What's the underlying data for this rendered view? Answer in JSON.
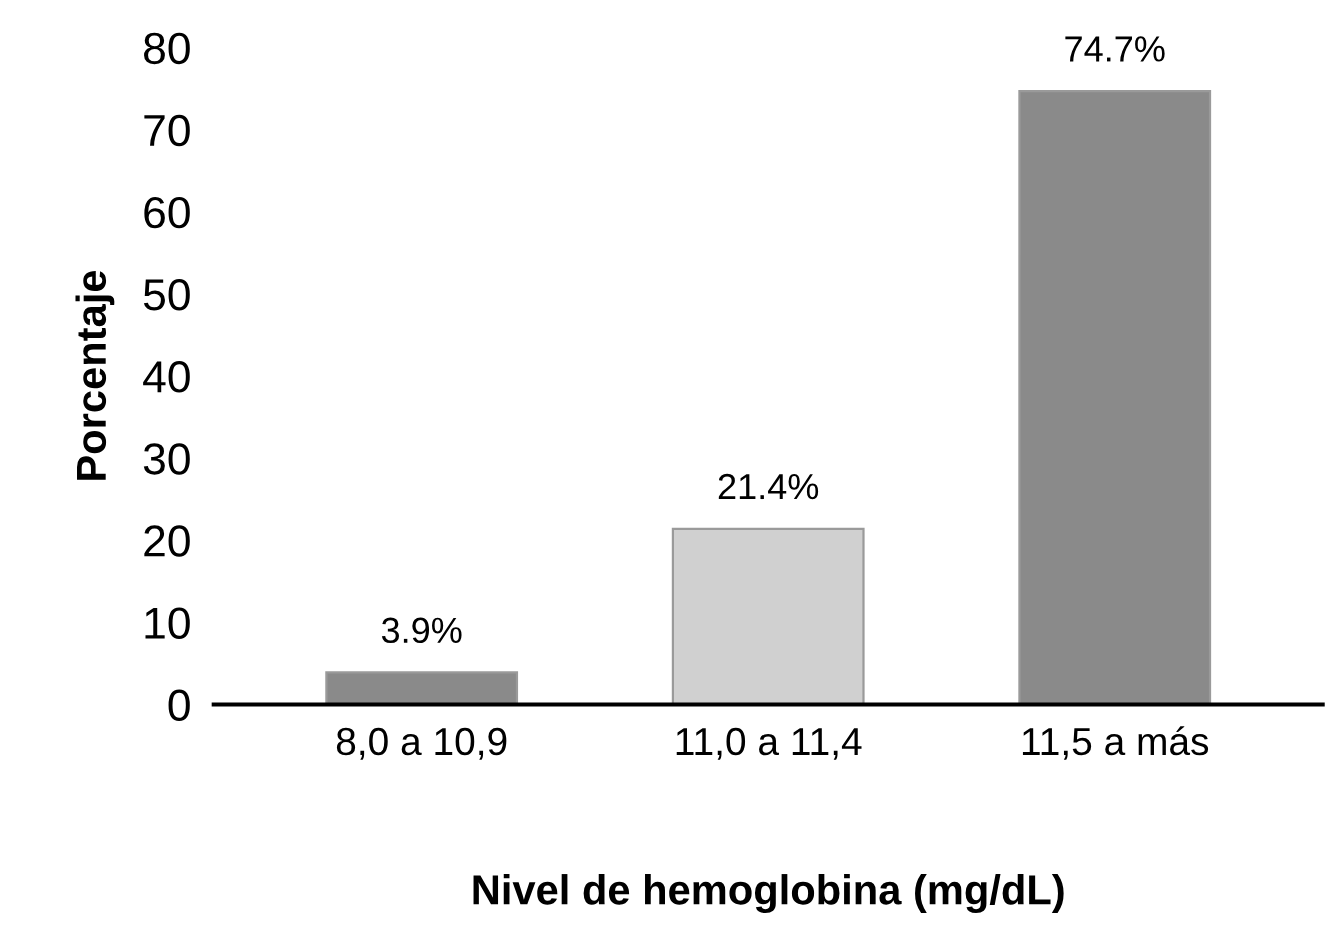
{
  "chart_data": {
    "type": "bar",
    "categories": [
      "8,0 a 10,9",
      "11,0 a 11,4",
      "11,5 a más"
    ],
    "values": [
      3.9,
      21.4,
      74.7
    ],
    "colors": [
      "#8a8a8a",
      "#d0d0d0",
      "#8a8a8a"
    ],
    "value_labels": [
      "3.9%",
      "21.4%",
      "74.7%"
    ],
    "xlabel": "Nivel de hemoglobina (mg/dL)",
    "ylabel": "Porcentaje",
    "ylim": [
      0,
      80
    ],
    "yticks": [
      0,
      10,
      20,
      30,
      40,
      50,
      60,
      70,
      80
    ],
    "grid": false,
    "legend": false
  }
}
